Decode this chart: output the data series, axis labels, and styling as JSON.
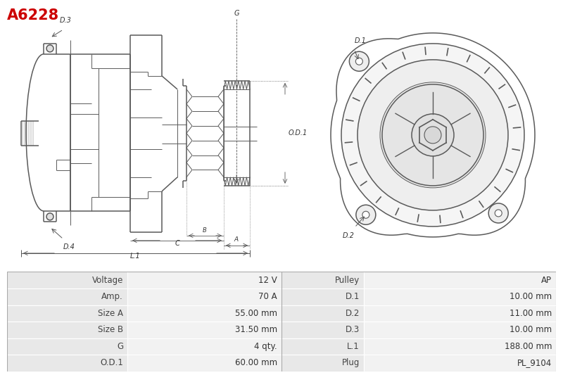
{
  "title": "A6228",
  "title_color": "#cc0000",
  "bg_color": "#ffffff",
  "table_row_bg1": "#e8e8e8",
  "table_row_bg2": "#f2f2f2",
  "table_data": [
    [
      "Voltage",
      "12 V",
      "Pulley",
      "AP"
    ],
    [
      "Amp.",
      "70 A",
      "D.1",
      "10.00 mm"
    ],
    [
      "Size A",
      "55.00 mm",
      "D.2",
      "11.00 mm"
    ],
    [
      "Size B",
      "31.50 mm",
      "D.3",
      "10.00 mm"
    ],
    [
      "G",
      "4 qty.",
      "L.1",
      "188.00 mm"
    ],
    [
      "O.D.1",
      "60.00 mm",
      "Plug",
      "PL_9104"
    ]
  ],
  "figsize": [
    8.0,
    5.33
  ],
  "dpi": 100
}
